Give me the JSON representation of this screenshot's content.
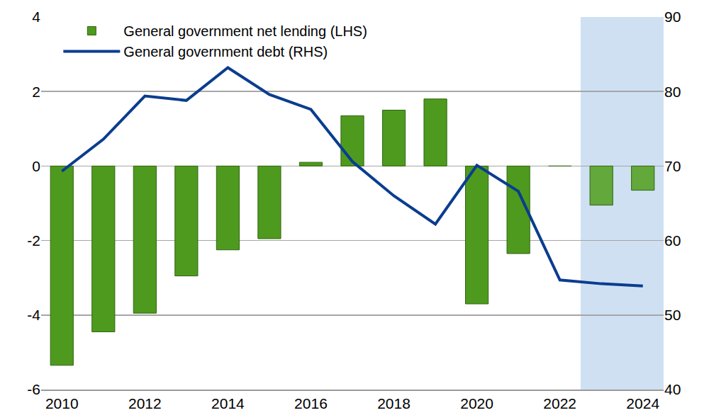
{
  "chart_data": {
    "type": "bar",
    "x": [
      2010,
      2011,
      2012,
      2013,
      2014,
      2015,
      2016,
      2017,
      2018,
      2019,
      2020,
      2021,
      2022,
      2023,
      2024
    ],
    "xlim": [
      2009.5,
      2024.5
    ],
    "xticks": [
      2010,
      2012,
      2014,
      2016,
      2018,
      2020,
      2022,
      2024
    ],
    "ylim": [
      -6,
      4
    ],
    "yticks": [
      -6,
      -4,
      -2,
      0,
      2,
      4
    ],
    "y2lim": [
      40,
      90
    ],
    "y2ticks": [
      40,
      50,
      60,
      70,
      80,
      90
    ],
    "grid": true,
    "legend": "upper left",
    "shaded_x": [
      2022.5,
      2024.5
    ],
    "series": [
      {
        "name": "General government net lending (LHS)",
        "type": "bar",
        "colors": [
          "#4e9a1e",
          "#4e9a1e",
          "#4e9a1e",
          "#4e9a1e",
          "#4e9a1e",
          "#4e9a1e",
          "#4e9a1e",
          "#4e9a1e",
          "#4e9a1e",
          "#4e9a1e",
          "#4e9a1e",
          "#4e9a1e",
          "#4e9a1e",
          "#62a83a",
          "#62a83a"
        ],
        "values": [
          -5.35,
          -4.45,
          -3.95,
          -2.95,
          -2.25,
          -1.95,
          0.1,
          1.35,
          1.5,
          1.8,
          -3.7,
          -2.35,
          0.0,
          -1.05,
          -0.65
        ]
      },
      {
        "name": "General government debt (RHS)",
        "type": "line",
        "axis": "y2",
        "color": "#0a3d8f",
        "values": [
          69.3,
          73.6,
          79.4,
          78.8,
          83.2,
          79.6,
          77.6,
          70.6,
          66.0,
          62.2,
          70.1,
          66.6,
          54.7,
          54.2,
          53.9
        ]
      }
    ]
  }
}
